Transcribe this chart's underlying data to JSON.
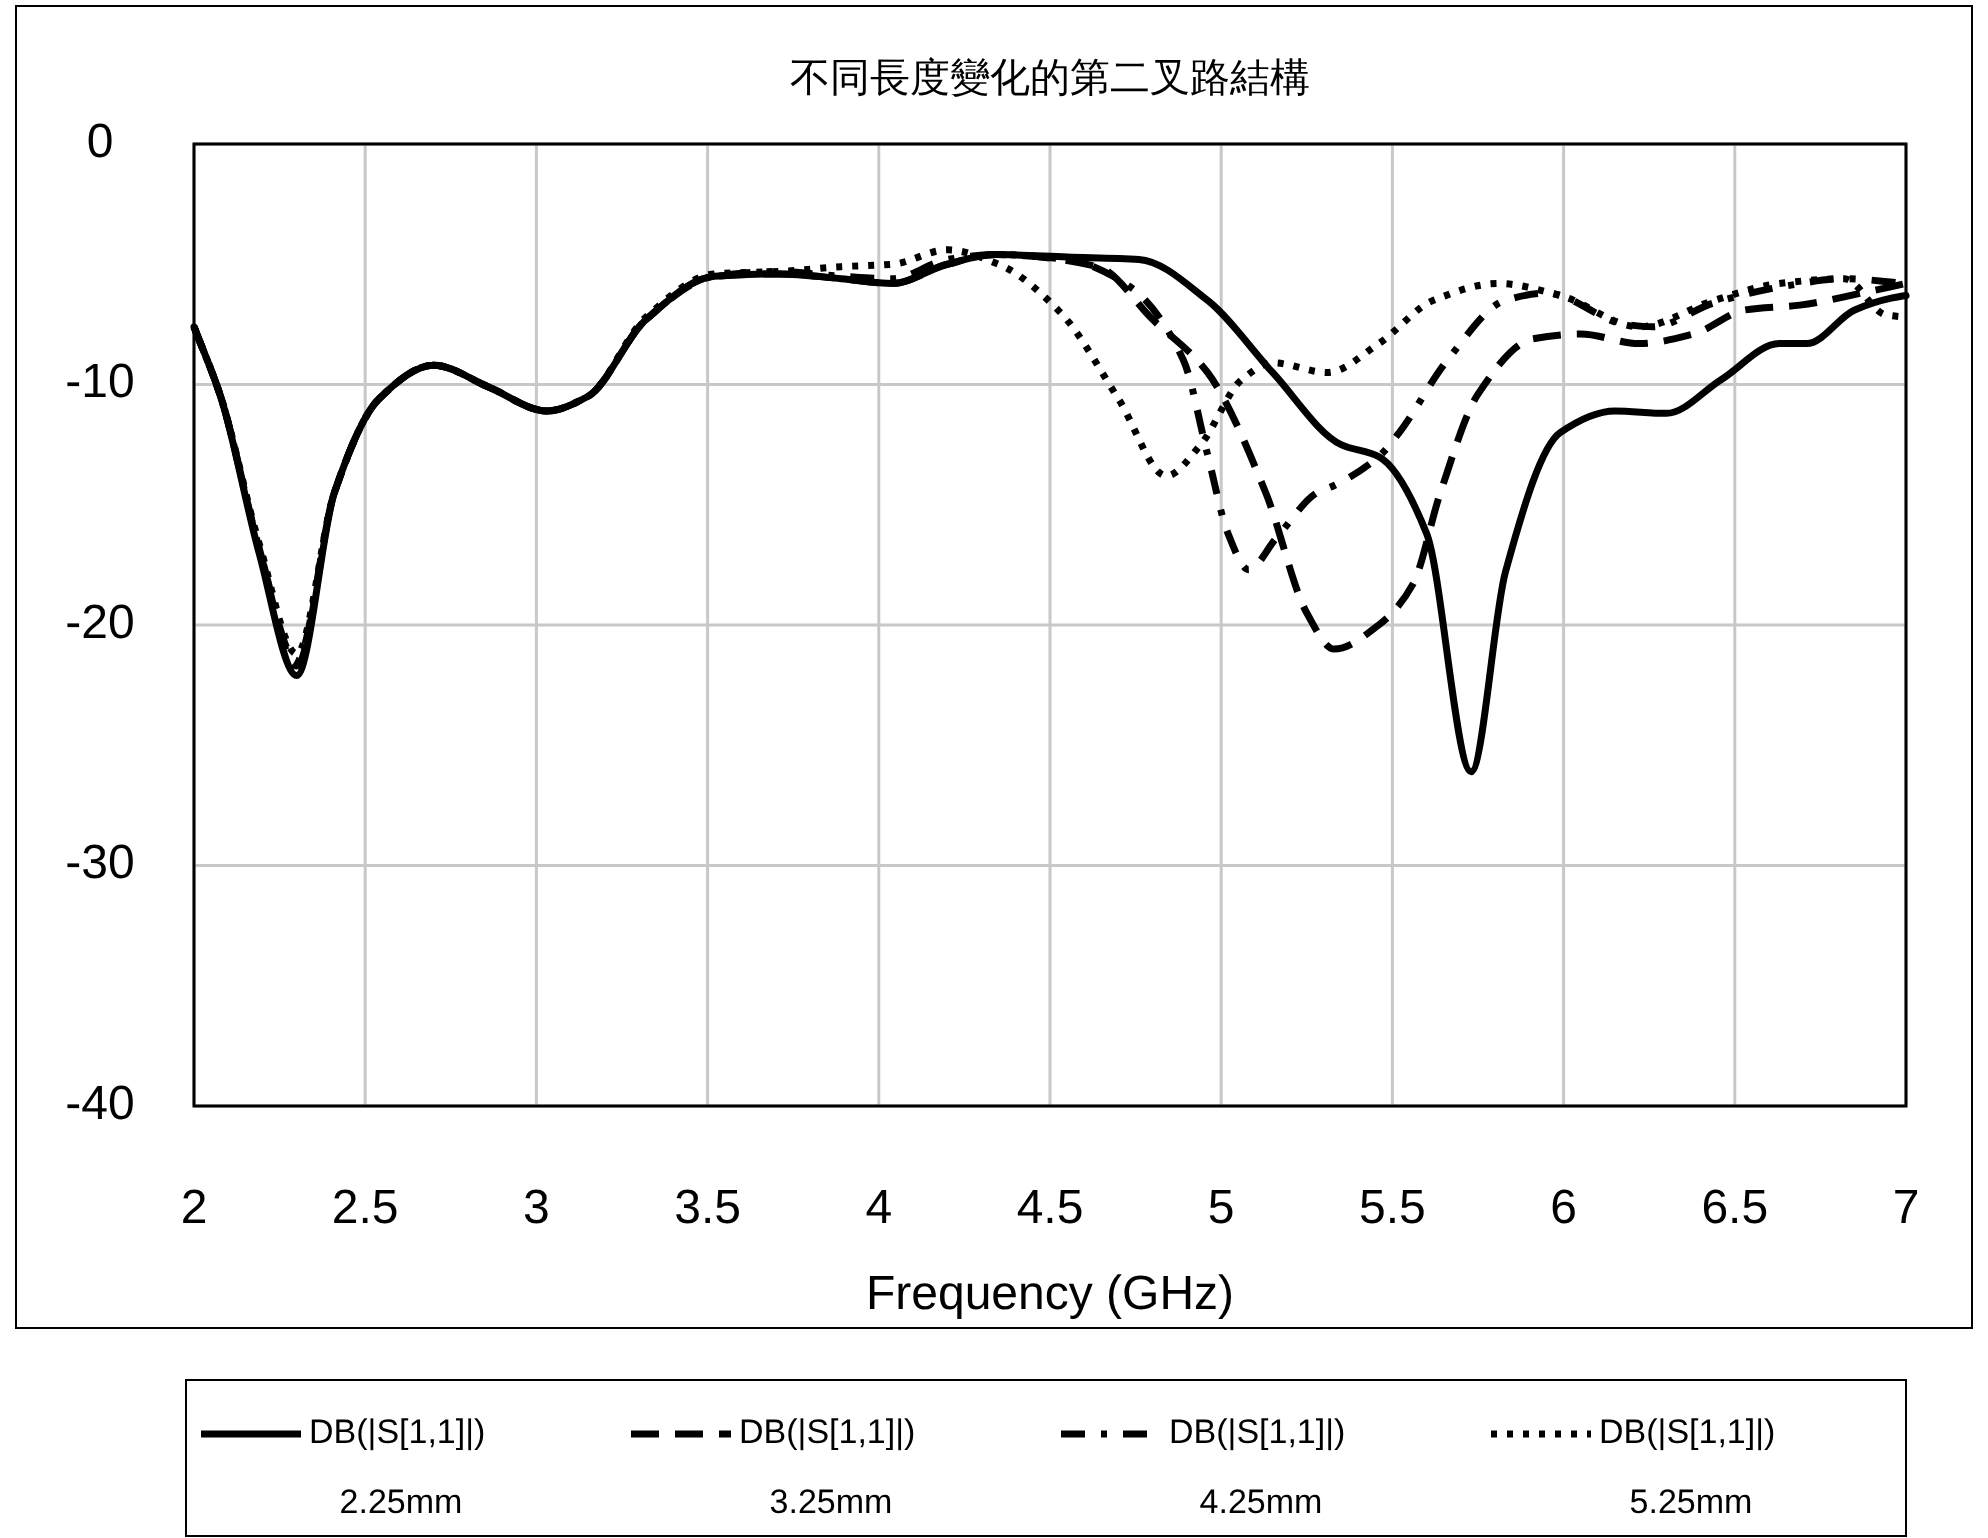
{
  "chart_data": {
    "type": "line",
    "title": "不同長度變化的第二叉路結構",
    "xlabel": "Frequency (GHz)",
    "xlim": [
      2,
      7
    ],
    "ylim": [
      -40,
      0
    ],
    "xticks": [
      2,
      2.5,
      3,
      3.5,
      4,
      4.5,
      5,
      5.5,
      6,
      6.5,
      7
    ],
    "yticks": [
      0,
      -10,
      -20,
      -30,
      -40
    ],
    "grid": true,
    "legend": "bottom",
    "marker": "none",
    "series": [
      {
        "name": "DB(|S[1,1]|)\n2.25mm",
        "color": "#000000",
        "line_style": "solid",
        "x": [
          2,
          2.08,
          2.19,
          2.3,
          2.41,
          2.54,
          2.7,
          2.86,
          3.03,
          3.15,
          3.32,
          3.52,
          3.71,
          3.89,
          4.04,
          4.2,
          4.34,
          4.55,
          4.76,
          4.96,
          5.15,
          5.35,
          5.46,
          5.6,
          5.73,
          5.83,
          5.99,
          6.15,
          6.3,
          6.46,
          6.63,
          6.71,
          6.85,
          6.96,
          7
        ],
        "values": [
          -7.6,
          -10.6,
          -17.0,
          -22.1,
          -14.5,
          -10.6,
          -9.2,
          -10.1,
          -11.1,
          -10.5,
          -7.3,
          -5.5,
          -5.4,
          -5.6,
          -5.8,
          -5.0,
          -4.6,
          -4.7,
          -4.8,
          -6.5,
          -9.5,
          -12.5,
          -13.0,
          -16.2,
          -26.1,
          -17.8,
          -12.0,
          -11.1,
          -11.2,
          -9.8,
          -8.3,
          -8.3,
          -6.9,
          -6.4,
          -6.3
        ]
      },
      {
        "name": "DB(|S[1,1]|)\n3.25mm",
        "color": "#000000",
        "line_style": "dashed",
        "x": [
          2,
          2.08,
          2.19,
          2.3,
          2.41,
          2.54,
          2.7,
          2.86,
          3.03,
          3.15,
          3.32,
          3.52,
          3.71,
          3.89,
          4.04,
          4.2,
          4.34,
          4.64,
          4.8,
          4.96,
          5.13,
          5.25,
          5.33,
          5.46,
          5.56,
          5.64,
          5.75,
          5.91,
          6.05,
          6.22,
          6.38,
          6.53,
          6.69,
          6.87,
          7
        ],
        "values": [
          -7.6,
          -10.6,
          -16.8,
          -21.7,
          -14.5,
          -10.6,
          -9.2,
          -10.1,
          -11.1,
          -10.5,
          -7.3,
          -5.5,
          -5.4,
          -5.6,
          -5.8,
          -5.0,
          -4.6,
          -5.1,
          -7.3,
          -9.5,
          -14.5,
          -19.5,
          -21.0,
          -20.0,
          -18.3,
          -14.5,
          -10.4,
          -8.1,
          -7.9,
          -8.3,
          -7.9,
          -6.9,
          -6.7,
          -6.2,
          -5.8
        ]
      },
      {
        "name": "DB(|S[1,1]|)\n4.25mm",
        "color": "#000000",
        "line_style": "dashdot",
        "x": [
          2,
          2.08,
          2.19,
          2.3,
          2.41,
          2.54,
          2.7,
          2.86,
          3.03,
          3.15,
          3.32,
          3.52,
          3.71,
          3.89,
          4.04,
          4.2,
          4.34,
          4.55,
          4.73,
          4.89,
          4.96,
          5.02,
          5.08,
          5.16,
          5.28,
          5.33,
          5.46,
          5.52,
          5.66,
          5.83,
          5.95,
          6.18,
          6.26,
          6.44,
          6.65,
          6.82,
          7
        ],
        "values": [
          -7.6,
          -10.6,
          -16.8,
          -21.5,
          -14.5,
          -10.6,
          -9.2,
          -10.1,
          -11.1,
          -10.5,
          -7.3,
          -5.5,
          -5.3,
          -5.5,
          -5.6,
          -4.8,
          -4.6,
          -4.8,
          -5.9,
          -9.0,
          -12.9,
          -16.2,
          -17.7,
          -16.4,
          -14.5,
          -14.2,
          -13.0,
          -12.0,
          -9.0,
          -6.5,
          -6.2,
          -7.5,
          -7.6,
          -6.6,
          -5.9,
          -5.6,
          -5.8
        ]
      },
      {
        "name": "DB(|S[1,1]|)\n5.25mm",
        "color": "#000000",
        "line_style": "dotted",
        "x": [
          2,
          2.08,
          2.19,
          2.3,
          2.41,
          2.54,
          2.7,
          2.86,
          3.03,
          3.15,
          3.32,
          3.52,
          3.71,
          3.89,
          4.04,
          4.2,
          4.35,
          4.53,
          4.7,
          4.84,
          4.94,
          5.06,
          5.15,
          5.31,
          5.46,
          5.62,
          5.81,
          5.99,
          6.22,
          6.44,
          6.63,
          6.82,
          6.94,
          7
        ],
        "values": [
          -7.6,
          -10.6,
          -16.6,
          -21.2,
          -14.5,
          -10.6,
          -9.2,
          -10.1,
          -11.1,
          -10.5,
          -7.2,
          -5.4,
          -5.3,
          -5.1,
          -5.0,
          -4.4,
          -5.0,
          -7.0,
          -10.6,
          -13.8,
          -12.5,
          -9.8,
          -9.1,
          -9.5,
          -8.3,
          -6.5,
          -5.8,
          -6.3,
          -7.6,
          -6.5,
          -5.8,
          -5.6,
          -7.1,
          -7.2
        ]
      }
    ]
  }
}
